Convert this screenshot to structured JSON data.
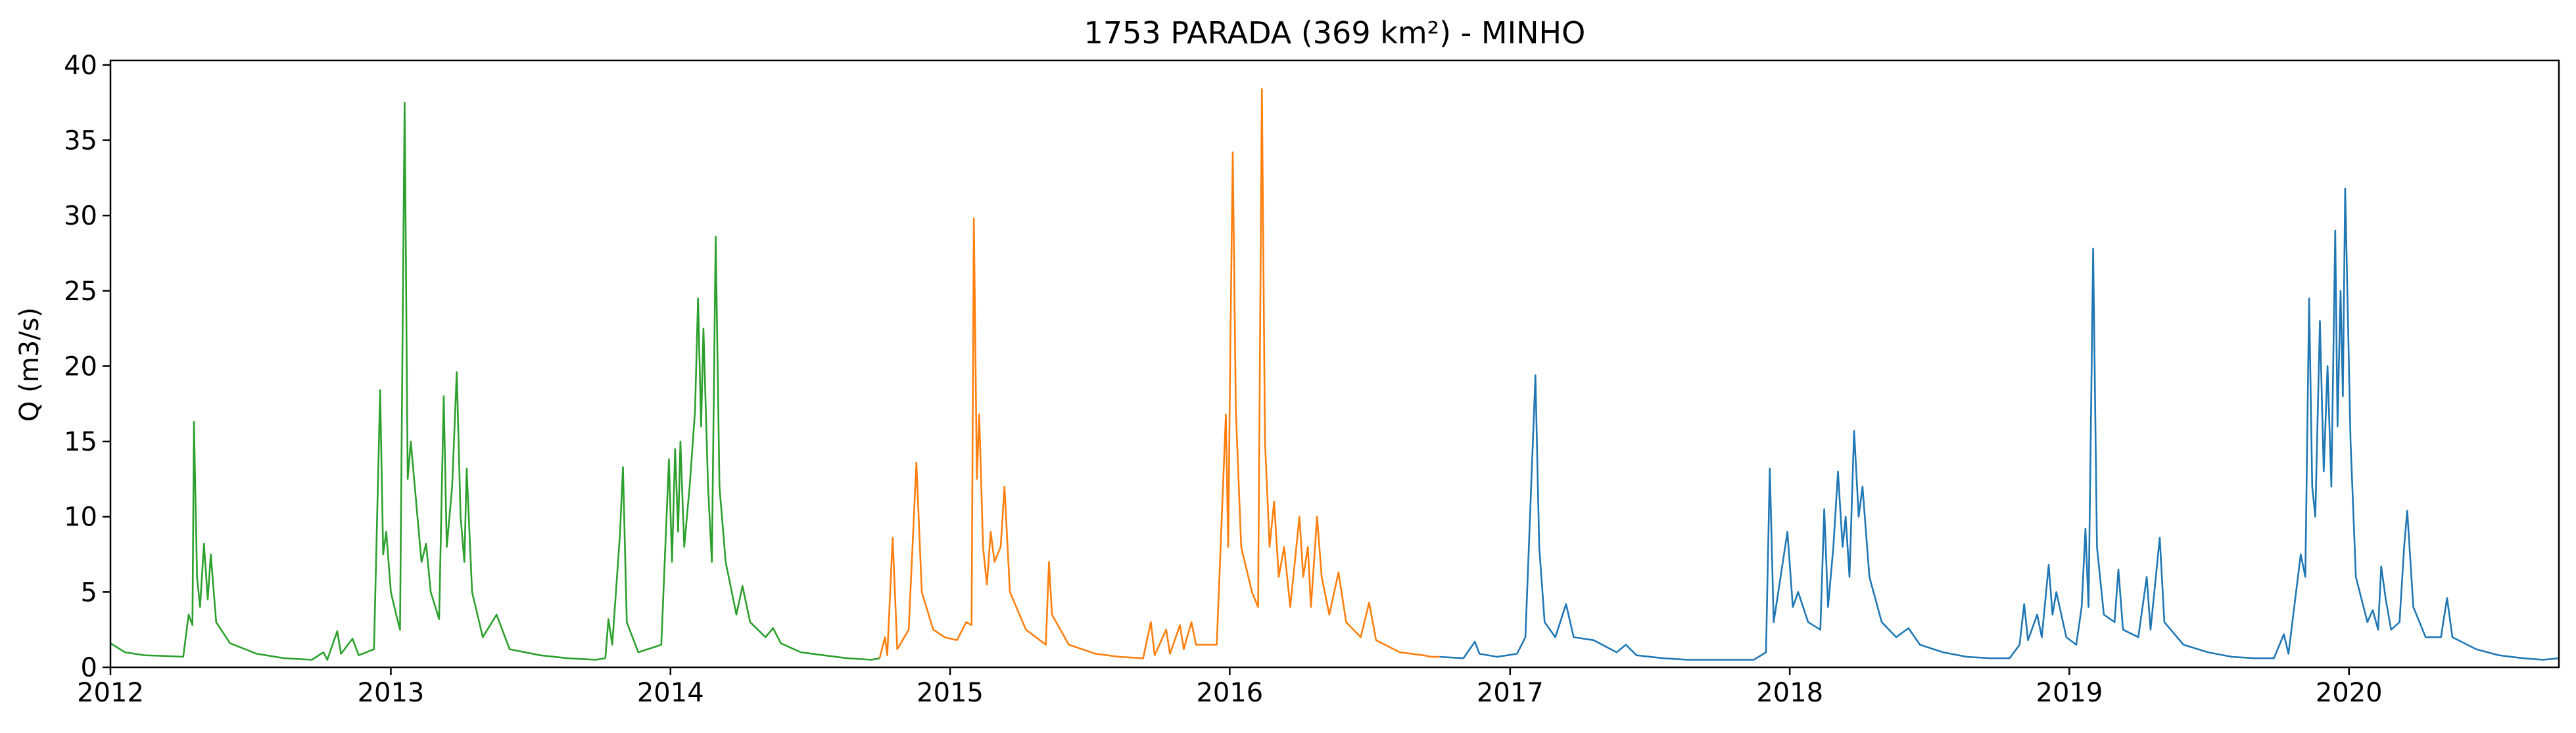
{
  "chart_data": {
    "type": "line",
    "title": "1753 PARADA (369 km²) - MINHO",
    "xlabel": "",
    "ylabel": "Q (m3/s)",
    "xlim": [
      "2012-01-01",
      "2020-10-01"
    ],
    "ylim": [
      0,
      40.3
    ],
    "x_ticks": [
      "2012",
      "2013",
      "2014",
      "2015",
      "2016",
      "2017",
      "2018",
      "2019",
      "2020"
    ],
    "y_ticks": [
      0,
      5,
      10,
      15,
      20,
      25,
      30,
      35,
      40
    ],
    "grid": false,
    "legend": "none",
    "series": [
      {
        "color": "#2ca02c",
        "points": [
          [
            "2012-01-01",
            1.6
          ],
          [
            "2012-01-20",
            1.0
          ],
          [
            "2012-02-15",
            0.8
          ],
          [
            "2012-03-15",
            0.75
          ],
          [
            "2012-04-05",
            0.7
          ],
          [
            "2012-04-12",
            3.5
          ],
          [
            "2012-04-17",
            2.8
          ],
          [
            "2012-04-19",
            16.3
          ],
          [
            "2012-04-23",
            6.0
          ],
          [
            "2012-04-27",
            4.0
          ],
          [
            "2012-05-02",
            8.2
          ],
          [
            "2012-05-07",
            4.5
          ],
          [
            "2012-05-11",
            7.5
          ],
          [
            "2012-05-18",
            3.0
          ],
          [
            "2012-06-05",
            1.6
          ],
          [
            "2012-07-10",
            0.9
          ],
          [
            "2012-08-15",
            0.6
          ],
          [
            "2012-09-20",
            0.5
          ],
          [
            "2012-10-05",
            1.0
          ],
          [
            "2012-10-10",
            0.5
          ],
          [
            "2012-10-23",
            2.4
          ],
          [
            "2012-10-28",
            0.9
          ],
          [
            "2012-11-12",
            1.9
          ],
          [
            "2012-11-20",
            0.8
          ],
          [
            "2012-12-10",
            1.2
          ],
          [
            "2012-12-18",
            18.4
          ],
          [
            "2012-12-22",
            7.5
          ],
          [
            "2012-12-26",
            9.0
          ],
          [
            "2013-01-01",
            5.0
          ],
          [
            "2013-01-08",
            3.5
          ],
          [
            "2013-01-13",
            2.5
          ],
          [
            "2013-01-19",
            37.5
          ],
          [
            "2013-01-23",
            12.5
          ],
          [
            "2013-01-27",
            15.0
          ],
          [
            "2013-02-03",
            11.0
          ],
          [
            "2013-02-10",
            7.0
          ],
          [
            "2013-02-16",
            8.2
          ],
          [
            "2013-02-22",
            5.0
          ],
          [
            "2013-03-05",
            3.2
          ],
          [
            "2013-03-11",
            18.0
          ],
          [
            "2013-03-15",
            8.0
          ],
          [
            "2013-03-22",
            12.0
          ],
          [
            "2013-03-28",
            19.6
          ],
          [
            "2013-04-02",
            10.0
          ],
          [
            "2013-04-07",
            7.0
          ],
          [
            "2013-04-10",
            13.2
          ],
          [
            "2013-04-17",
            5.0
          ],
          [
            "2013-05-01",
            2.0
          ],
          [
            "2013-05-19",
            3.5
          ],
          [
            "2013-06-05",
            1.2
          ],
          [
            "2013-07-15",
            0.8
          ],
          [
            "2013-08-20",
            0.6
          ],
          [
            "2013-09-25",
            0.5
          ],
          [
            "2013-10-08",
            0.6
          ],
          [
            "2013-10-12",
            3.2
          ],
          [
            "2013-10-17",
            1.5
          ],
          [
            "2013-10-27",
            8.8
          ],
          [
            "2013-10-31",
            13.3
          ],
          [
            "2013-11-05",
            3.0
          ],
          [
            "2013-11-20",
            1.0
          ],
          [
            "2013-12-20",
            1.5
          ],
          [
            "2013-12-30",
            13.8
          ],
          [
            "2014-01-03",
            7.0
          ],
          [
            "2014-01-07",
            14.5
          ],
          [
            "2014-01-11",
            9.0
          ],
          [
            "2014-01-14",
            15.0
          ],
          [
            "2014-01-19",
            8.0
          ],
          [
            "2014-01-26",
            12.0
          ],
          [
            "2014-02-02",
            17.0
          ],
          [
            "2014-02-06",
            24.5
          ],
          [
            "2014-02-10",
            16.0
          ],
          [
            "2014-02-13",
            22.5
          ],
          [
            "2014-02-19",
            12.0
          ],
          [
            "2014-02-24",
            7.0
          ],
          [
            "2014-03-01",
            28.6
          ],
          [
            "2014-03-06",
            12.0
          ],
          [
            "2014-03-14",
            7.0
          ],
          [
            "2014-03-28",
            3.5
          ],
          [
            "2014-04-05",
            5.4
          ],
          [
            "2014-04-15",
            3.0
          ],
          [
            "2014-05-05",
            2.0
          ],
          [
            "2014-05-15",
            2.6
          ],
          [
            "2014-05-25",
            1.6
          ],
          [
            "2014-06-20",
            1.0
          ],
          [
            "2014-07-20",
            0.8
          ],
          [
            "2014-08-20",
            0.6
          ],
          [
            "2014-09-20",
            0.5
          ],
          [
            "2014-10-01",
            0.6
          ]
        ]
      },
      {
        "color": "#ff7f0e",
        "points": [
          [
            "2014-10-01",
            0.6
          ],
          [
            "2014-10-08",
            2.0
          ],
          [
            "2014-10-11",
            0.8
          ],
          [
            "2014-10-18",
            8.6
          ],
          [
            "2014-10-24",
            1.2
          ],
          [
            "2014-11-08",
            2.5
          ],
          [
            "2014-11-18",
            13.6
          ],
          [
            "2014-11-25",
            5.0
          ],
          [
            "2014-12-10",
            2.5
          ],
          [
            "2014-12-25",
            2.0
          ],
          [
            "2015-01-10",
            1.8
          ],
          [
            "2015-01-22",
            3.0
          ],
          [
            "2015-01-29",
            2.8
          ],
          [
            "2015-02-01",
            29.8
          ],
          [
            "2015-02-05",
            12.5
          ],
          [
            "2015-02-08",
            16.8
          ],
          [
            "2015-02-13",
            8.0
          ],
          [
            "2015-02-18",
            5.5
          ],
          [
            "2015-02-23",
            9.0
          ],
          [
            "2015-02-28",
            7.0
          ],
          [
            "2015-03-08",
            8.0
          ],
          [
            "2015-03-13",
            12.0
          ],
          [
            "2015-03-20",
            5.0
          ],
          [
            "2015-04-10",
            2.5
          ],
          [
            "2015-05-06",
            1.5
          ],
          [
            "2015-05-10",
            7.0
          ],
          [
            "2015-05-14",
            3.5
          ],
          [
            "2015-06-05",
            1.5
          ],
          [
            "2015-07-10",
            0.9
          ],
          [
            "2015-08-10",
            0.7
          ],
          [
            "2015-09-10",
            0.6
          ],
          [
            "2015-09-20",
            3.0
          ],
          [
            "2015-09-25",
            0.8
          ],
          [
            "2015-10-10",
            2.5
          ],
          [
            "2015-10-15",
            0.9
          ],
          [
            "2015-10-28",
            2.8
          ],
          [
            "2015-11-02",
            1.2
          ],
          [
            "2015-11-12",
            3.0
          ],
          [
            "2015-11-18",
            1.5
          ],
          [
            "2015-12-15",
            1.5
          ],
          [
            "2015-12-27",
            16.8
          ],
          [
            "2015-12-30",
            8.0
          ],
          [
            "2016-01-02",
            22.0
          ],
          [
            "2016-01-05",
            34.2
          ],
          [
            "2016-01-09",
            17.0
          ],
          [
            "2016-01-16",
            8.0
          ],
          [
            "2016-01-30",
            5.0
          ],
          [
            "2016-02-07",
            4.0
          ],
          [
            "2016-02-12",
            38.4
          ],
          [
            "2016-02-16",
            15.0
          ],
          [
            "2016-02-22",
            8.0
          ],
          [
            "2016-02-28",
            11.0
          ],
          [
            "2016-03-05",
            6.0
          ],
          [
            "2016-03-12",
            8.0
          ],
          [
            "2016-03-20",
            4.0
          ],
          [
            "2016-04-01",
            10.0
          ],
          [
            "2016-04-06",
            6.0
          ],
          [
            "2016-04-12",
            8.0
          ],
          [
            "2016-04-16",
            4.0
          ],
          [
            "2016-04-24",
            10.0
          ],
          [
            "2016-04-30",
            6.0
          ],
          [
            "2016-05-10",
            3.5
          ],
          [
            "2016-05-22",
            6.3
          ],
          [
            "2016-06-01",
            3.0
          ],
          [
            "2016-06-20",
            2.0
          ],
          [
            "2016-07-01",
            4.3
          ],
          [
            "2016-07-10",
            1.8
          ],
          [
            "2016-08-10",
            1.0
          ],
          [
            "2016-09-10",
            0.8
          ],
          [
            "2016-09-20",
            0.7
          ],
          [
            "2016-10-01",
            0.7
          ]
        ]
      },
      {
        "color": "#1f77b4",
        "points": [
          [
            "2016-10-01",
            0.7
          ],
          [
            "2016-11-01",
            0.6
          ],
          [
            "2016-11-16",
            1.7
          ],
          [
            "2016-11-22",
            0.9
          ],
          [
            "2016-12-15",
            0.7
          ],
          [
            "2017-01-10",
            0.9
          ],
          [
            "2017-01-21",
            2.0
          ],
          [
            "2017-02-03",
            19.4
          ],
          [
            "2017-02-08",
            8.0
          ],
          [
            "2017-02-15",
            3.0
          ],
          [
            "2017-03-01",
            2.0
          ],
          [
            "2017-03-15",
            4.2
          ],
          [
            "2017-03-25",
            2.0
          ],
          [
            "2017-04-20",
            1.8
          ],
          [
            "2017-05-20",
            1.0
          ],
          [
            "2017-06-01",
            1.5
          ],
          [
            "2017-06-15",
            0.8
          ],
          [
            "2017-07-20",
            0.6
          ],
          [
            "2017-08-20",
            0.5
          ],
          [
            "2017-10-01",
            0.5
          ],
          [
            "2017-11-15",
            0.5
          ],
          [
            "2017-12-01",
            1.0
          ],
          [
            "2017-12-06",
            13.2
          ],
          [
            "2017-12-11",
            3.0
          ],
          [
            "2017-12-20",
            6.0
          ],
          [
            "2017-12-29",
            9.0
          ],
          [
            "2018-01-05",
            4.0
          ],
          [
            "2018-01-12",
            5.0
          ],
          [
            "2018-01-25",
            3.0
          ],
          [
            "2018-02-10",
            2.5
          ],
          [
            "2018-02-15",
            10.5
          ],
          [
            "2018-02-20",
            4.0
          ],
          [
            "2018-02-27",
            8.0
          ],
          [
            "2018-03-05",
            13.0
          ],
          [
            "2018-03-11",
            8.0
          ],
          [
            "2018-03-15",
            10.0
          ],
          [
            "2018-03-20",
            6.0
          ],
          [
            "2018-03-26",
            15.7
          ],
          [
            "2018-04-01",
            10.0
          ],
          [
            "2018-04-06",
            12.0
          ],
          [
            "2018-04-15",
            6.0
          ],
          [
            "2018-05-01",
            3.0
          ],
          [
            "2018-05-20",
            2.0
          ],
          [
            "2018-06-05",
            2.6
          ],
          [
            "2018-06-20",
            1.5
          ],
          [
            "2018-07-20",
            1.0
          ],
          [
            "2018-08-20",
            0.7
          ],
          [
            "2018-09-20",
            0.6
          ],
          [
            "2018-10-15",
            0.6
          ],
          [
            "2018-10-28",
            1.5
          ],
          [
            "2018-11-03",
            4.2
          ],
          [
            "2018-11-08",
            1.8
          ],
          [
            "2018-11-20",
            3.5
          ],
          [
            "2018-11-26",
            2.0
          ],
          [
            "2018-12-05",
            6.8
          ],
          [
            "2018-12-10",
            3.5
          ],
          [
            "2018-12-15",
            5.0
          ],
          [
            "2018-12-28",
            2.0
          ],
          [
            "2019-01-10",
            1.5
          ],
          [
            "2019-01-17",
            4.0
          ],
          [
            "2019-01-22",
            9.2
          ],
          [
            "2019-01-26",
            4.0
          ],
          [
            "2019-02-01",
            27.8
          ],
          [
            "2019-02-06",
            8.0
          ],
          [
            "2019-02-15",
            3.5
          ],
          [
            "2019-03-01",
            3.0
          ],
          [
            "2019-03-06",
            6.5
          ],
          [
            "2019-03-12",
            2.5
          ],
          [
            "2019-04-01",
            2.0
          ],
          [
            "2019-04-12",
            6.0
          ],
          [
            "2019-04-17",
            2.5
          ],
          [
            "2019-04-29",
            8.6
          ],
          [
            "2019-05-05",
            3.0
          ],
          [
            "2019-05-30",
            1.5
          ],
          [
            "2019-07-01",
            1.0
          ],
          [
            "2019-08-01",
            0.7
          ],
          [
            "2019-09-01",
            0.6
          ],
          [
            "2019-09-25",
            0.6
          ],
          [
            "2019-10-08",
            2.2
          ],
          [
            "2019-10-14",
            0.9
          ],
          [
            "2019-10-30",
            7.5
          ],
          [
            "2019-11-05",
            6.0
          ],
          [
            "2019-11-10",
            24.5
          ],
          [
            "2019-11-14",
            12.0
          ],
          [
            "2019-11-18",
            10.0
          ],
          [
            "2019-11-24",
            23.0
          ],
          [
            "2019-11-29",
            13.0
          ],
          [
            "2019-12-04",
            20.0
          ],
          [
            "2019-12-09",
            12.0
          ],
          [
            "2019-12-14",
            29.0
          ],
          [
            "2019-12-17",
            16.0
          ],
          [
            "2019-12-21",
            25.0
          ],
          [
            "2019-12-24",
            18.0
          ],
          [
            "2019-12-27",
            31.8
          ],
          [
            "2020-01-03",
            15.0
          ],
          [
            "2020-01-10",
            6.0
          ],
          [
            "2020-01-25",
            3.0
          ],
          [
            "2020-02-01",
            3.8
          ],
          [
            "2020-02-08",
            2.5
          ],
          [
            "2020-02-12",
            6.7
          ],
          [
            "2020-02-18",
            4.5
          ],
          [
            "2020-02-25",
            2.5
          ],
          [
            "2020-03-07",
            3.0
          ],
          [
            "2020-03-13",
            8.0
          ],
          [
            "2020-03-17",
            10.4
          ],
          [
            "2020-03-25",
            4.0
          ],
          [
            "2020-04-10",
            2.0
          ],
          [
            "2020-04-30",
            2.0
          ],
          [
            "2020-05-08",
            4.6
          ],
          [
            "2020-05-15",
            2.0
          ],
          [
            "2020-06-15",
            1.2
          ],
          [
            "2020-07-15",
            0.8
          ],
          [
            "2020-08-15",
            0.6
          ],
          [
            "2020-09-10",
            0.5
          ],
          [
            "2020-10-01",
            0.6
          ]
        ]
      }
    ]
  }
}
